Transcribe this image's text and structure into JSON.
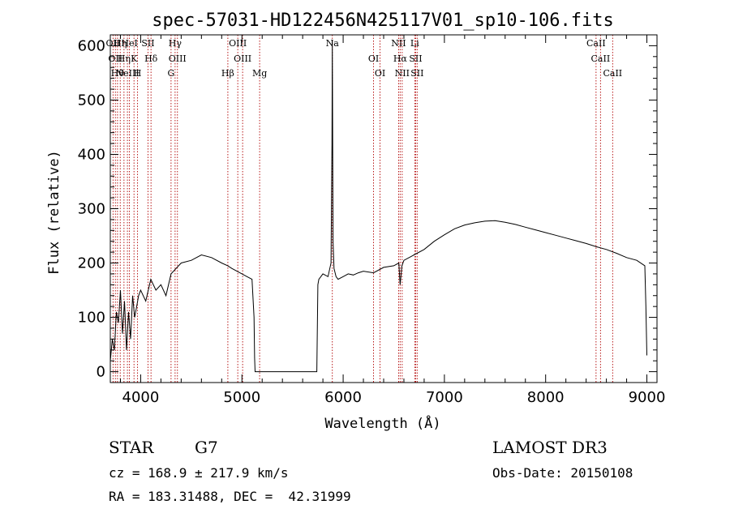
{
  "footer": {
    "object_class": "STAR",
    "subclass": "G7",
    "cz": "cz = 168.9 ± 217.9 km/s",
    "coords": "RA = 183.31488, DEC =  42.31999",
    "survey": "LAMOST DR3",
    "obs_date": "Obs-Date: 20150108"
  },
  "chart_data": {
    "type": "line",
    "title": "spec-57031-HD122456N425117V01_sp10-106.fits",
    "xlabel": "Wavelength (Å)",
    "ylabel": "Flux (relative)",
    "xlim": [
      3700,
      9100
    ],
    "ylim": [
      -20,
      620
    ],
    "xticks": [
      4000,
      5000,
      6000,
      7000,
      8000,
      9000
    ],
    "yticks": [
      0,
      100,
      200,
      300,
      400,
      500,
      600
    ],
    "series": [
      {
        "name": "flux",
        "x": [
          3700,
          3720,
          3740,
          3760,
          3780,
          3800,
          3820,
          3840,
          3860,
          3880,
          3900,
          3920,
          3940,
          3960,
          3980,
          4000,
          4050,
          4100,
          4150,
          4200,
          4250,
          4300,
          4350,
          4400,
          4500,
          4600,
          4700,
          4800,
          4860,
          4900,
          5000,
          5050,
          5100,
          5120,
          5125,
          5130,
          5140,
          5200,
          5400,
          5600,
          5740,
          5750,
          5760,
          5780,
          5800,
          5850,
          5880,
          5890,
          5893,
          5896,
          5900,
          5910,
          5930,
          5950,
          6000,
          6050,
          6100,
          6150,
          6200,
          6300,
          6400,
          6500,
          6550,
          6563,
          6580,
          6600,
          6700,
          6800,
          6900,
          7000,
          7100,
          7200,
          7300,
          7400,
          7500,
          7600,
          7700,
          7800,
          7900,
          8000,
          8100,
          8200,
          8300,
          8400,
          8500,
          8600,
          8700,
          8800,
          8900,
          8980,
          8990,
          9000
        ],
        "y": [
          20,
          60,
          40,
          110,
          90,
          150,
          70,
          130,
          40,
          110,
          60,
          140,
          100,
          120,
          140,
          150,
          130,
          170,
          150,
          160,
          140,
          180,
          190,
          200,
          205,
          215,
          210,
          200,
          195,
          190,
          180,
          175,
          170,
          100,
          25,
          0,
          0,
          0,
          0,
          0,
          0,
          160,
          170,
          175,
          180,
          175,
          200,
          420,
          610,
          450,
          240,
          190,
          175,
          170,
          175,
          180,
          178,
          182,
          185,
          182,
          192,
          195,
          200,
          160,
          195,
          205,
          215,
          225,
          240,
          252,
          263,
          270,
          274,
          277,
          278,
          275,
          271,
          266,
          261,
          256,
          251,
          246,
          241,
          236,
          230,
          225,
          218,
          210,
          205,
          195,
          120,
          30
        ]
      }
    ],
    "lines": [
      {
        "wave": 3727,
        "labels": [
          "OII"
        ]
      },
      {
        "wave": 3750,
        "labels": [
          "OII"
        ]
      },
      {
        "wave": 3771,
        "labels": [
          "Hθ"
        ]
      },
      {
        "wave": 3798,
        "labels": [
          "Hη"
        ]
      },
      {
        "wave": 3835,
        "labels": [
          "Hη"
        ]
      },
      {
        "wave": 3869,
        "labels": [
          "NeIII"
        ]
      },
      {
        "wave": 3889,
        "labels": [
          "HeI"
        ]
      },
      {
        "wave": 3934,
        "labels": [
          "K"
        ]
      },
      {
        "wave": 3969,
        "labels": [
          "H"
        ]
      },
      {
        "wave": 4072,
        "labels": [
          "SII"
        ]
      },
      {
        "wave": 4102,
        "labels": [
          "Hδ"
        ]
      },
      {
        "wave": 4300,
        "labels": [
          "G"
        ]
      },
      {
        "wave": 4340,
        "labels": [
          "Hγ"
        ]
      },
      {
        "wave": 4363,
        "labels": [
          "OIII"
        ]
      },
      {
        "wave": 4861,
        "labels": [
          "Hβ"
        ]
      },
      {
        "wave": 4959,
        "labels": [
          "OIII"
        ]
      },
      {
        "wave": 5007,
        "labels": [
          "OIII"
        ]
      },
      {
        "wave": 5175,
        "labels": [
          "Mg"
        ]
      },
      {
        "wave": 5893,
        "labels": [
          "Na"
        ]
      },
      {
        "wave": 6300,
        "labels": [
          "OI"
        ]
      },
      {
        "wave": 6364,
        "labels": [
          "OI"
        ]
      },
      {
        "wave": 6548,
        "labels": [
          "NII"
        ]
      },
      {
        "wave": 6563,
        "labels": [
          "Hα"
        ]
      },
      {
        "wave": 6583,
        "labels": [
          "NII"
        ]
      },
      {
        "wave": 6707,
        "labels": [
          "Li"
        ]
      },
      {
        "wave": 6716,
        "labels": [
          "SII"
        ]
      },
      {
        "wave": 6731,
        "labels": [
          "SII"
        ]
      },
      {
        "wave": 8498,
        "labels": [
          "CaII"
        ]
      },
      {
        "wave": 8542,
        "labels": [
          "CaII"
        ]
      },
      {
        "wave": 8662,
        "labels": [
          "CaII"
        ]
      }
    ]
  }
}
